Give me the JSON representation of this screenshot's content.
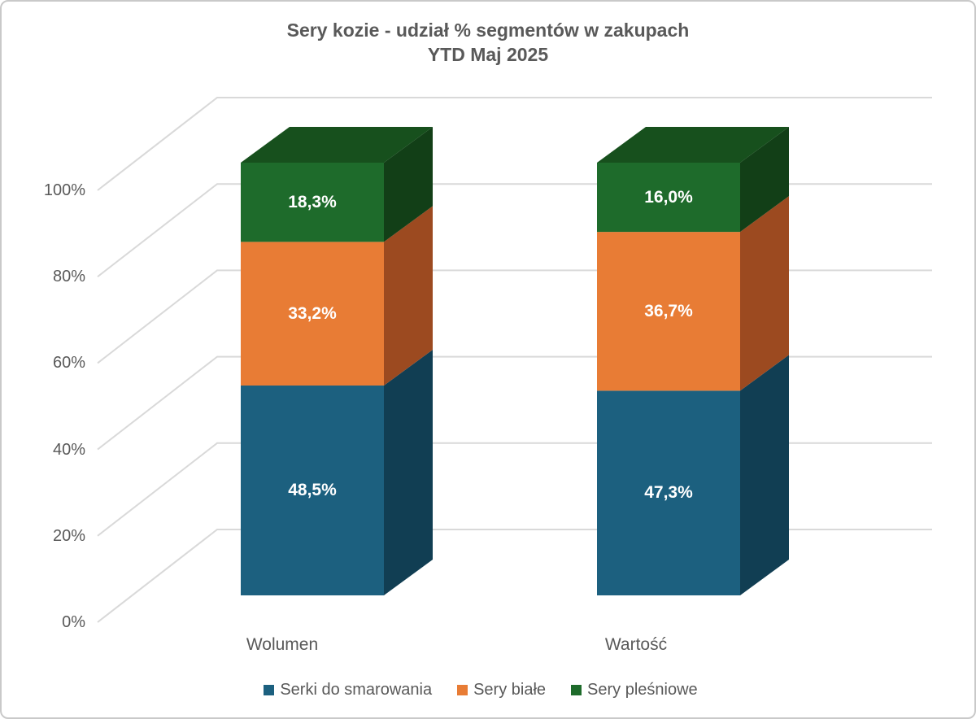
{
  "title": {
    "line1": "Sery kozie - udział % segmentów w zakupach",
    "line2": "YTD Maj 2025"
  },
  "chart_data": {
    "type": "bar",
    "subtype": "3d-100%-stacked-column",
    "title": "Sery kozie - udział % segmentów w zakupach YTD Maj 2025",
    "categories": [
      "Wolumen",
      "Wartość"
    ],
    "series": [
      {
        "name": "Serki do smarowania",
        "values": [
          48.5,
          47.3
        ],
        "labels": [
          "48,5%",
          "47,3%"
        ],
        "color_front": "#1C607F",
        "color_side": "#113E53",
        "color_top": "#16506B"
      },
      {
        "name": "Sery białe",
        "values": [
          33.2,
          36.7
        ],
        "labels": [
          "33,2%",
          "36,7%"
        ],
        "color_front": "#E87C35",
        "color_side": "#9C4A20",
        "color_top": "#C06227"
      },
      {
        "name": "Sery pleśniowe",
        "values": [
          18.3,
          16.0
        ],
        "labels": [
          "18,3%",
          "16,0%"
        ],
        "color_front": "#1E6B2B",
        "color_side": "#123F17",
        "color_top": "#17501D"
      }
    ],
    "yticks": [
      "0%",
      "20%",
      "40%",
      "60%",
      "80%",
      "100%"
    ],
    "ylim": [
      0,
      100
    ],
    "grid": true,
    "legend_position": "bottom",
    "gridline_color": "#D9D9D9",
    "text_color": "#595959",
    "data_label_color": "#FFFFFF"
  }
}
